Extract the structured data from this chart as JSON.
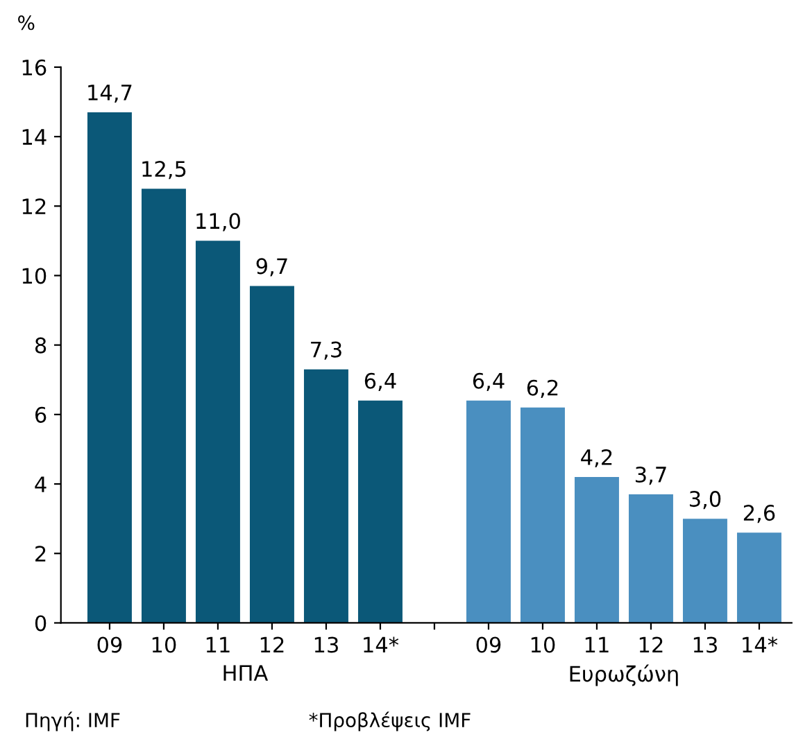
{
  "chart_data": {
    "type": "bar",
    "ylabel": "%",
    "categories": [
      "09",
      "10",
      "11",
      "12",
      "13",
      "14*",
      null,
      "09",
      "10",
      "11",
      "12",
      "13",
      "14*"
    ],
    "series": [
      {
        "name": "ΗΠΑ",
        "color": "#0b5878",
        "values": [
          14.7,
          12.5,
          11.0,
          9.7,
          7.3,
          6.4,
          null,
          null,
          null,
          null,
          null,
          null,
          null
        ],
        "value_labels": [
          "14,7",
          "12,5",
          "11,0",
          "9,7",
          "7,3",
          "6,4",
          null,
          null,
          null,
          null,
          null,
          null,
          null
        ]
      },
      {
        "name": "Ευρωζώνη",
        "color": "#4a8fc0",
        "values": [
          null,
          null,
          null,
          null,
          null,
          null,
          null,
          6.4,
          6.2,
          4.2,
          3.7,
          3.0,
          2.6
        ],
        "value_labels": [
          null,
          null,
          null,
          null,
          null,
          null,
          null,
          "6,4",
          "6,2",
          "4,2",
          "3,7",
          "3,0",
          "2,6"
        ]
      }
    ],
    "ylim": [
      0,
      16
    ],
    "yticks": [
      0,
      2,
      4,
      6,
      8,
      10,
      12,
      14,
      16
    ],
    "grid": false,
    "legend": false,
    "annotations": [
      "Πηγή: IMF",
      "*Προβλέψεις IMF"
    ]
  }
}
